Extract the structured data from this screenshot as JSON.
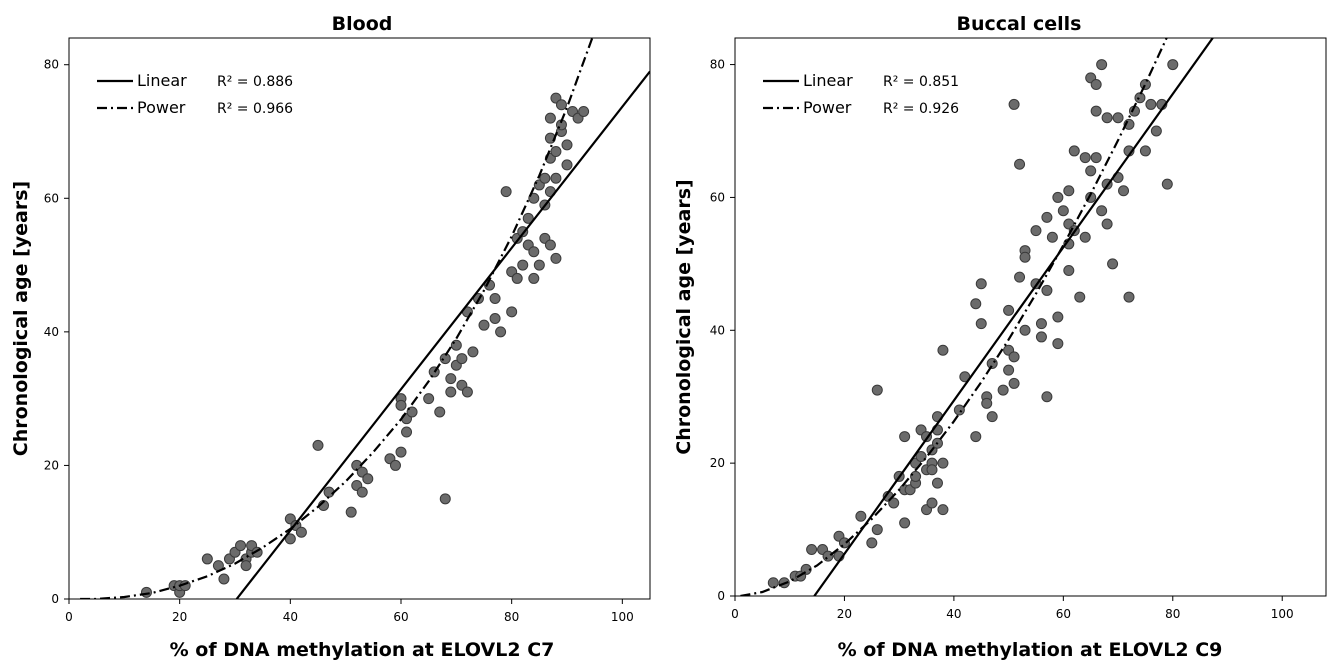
{
  "chart_data": [
    {
      "type": "scatter",
      "title": "Blood",
      "xlabel": "% of DNA methylation at ELOVL2 C7",
      "ylabel": "Chronological age [years]",
      "xlim": [
        0,
        105
      ],
      "ylim": [
        0,
        84
      ],
      "xticks": [
        "0",
        "20",
        "40",
        "60",
        "80",
        "100"
      ],
      "yticks": [
        "0",
        "20",
        "40",
        "60",
        "80"
      ],
      "legend_position": "top-left",
      "legend": [
        {
          "name": "Linear",
          "r2": "R² = 0.886",
          "style": "solid"
        },
        {
          "name": "Power",
          "r2": "R² = 0.966",
          "style": "dash-dot"
        }
      ],
      "fits": {
        "linear": {
          "x": [
            30.3,
            105
          ],
          "y": [
            0,
            79
          ]
        },
        "power": {
          "x": [
            2,
            5,
            10,
            15,
            20,
            25,
            30,
            35,
            40,
            45,
            50,
            55,
            60,
            65,
            70,
            75,
            80,
            85,
            90,
            95
          ],
          "y": [
            0.0,
            0.0,
            0.3,
            0.9,
            2.0,
            3.4,
            5.3,
            7.7,
            10.5,
            13.8,
            17.6,
            22.0,
            26.9,
            32.6,
            39.0,
            46.2,
            54.3,
            63.4,
            73.6,
            85.0
          ]
        }
      },
      "points": {
        "x": [
          14,
          19,
          20,
          20,
          21,
          25,
          27,
          28,
          29,
          30,
          31,
          32,
          32,
          33,
          33,
          34,
          40,
          40,
          41,
          42,
          45,
          46,
          47,
          51,
          52,
          52,
          53,
          53,
          54,
          58,
          59,
          60,
          60,
          60,
          61,
          61,
          62,
          65,
          66,
          67,
          68,
          68,
          69,
          69,
          70,
          70,
          71,
          71,
          72,
          72,
          73,
          74,
          75,
          76,
          77,
          77,
          78,
          79,
          80,
          80,
          81,
          81,
          82,
          82,
          83,
          83,
          84,
          84,
          84,
          85,
          85,
          86,
          86,
          86,
          87,
          87,
          87,
          87,
          87,
          88,
          88,
          88,
          88,
          89,
          89,
          89,
          90,
          90,
          91,
          92,
          93
        ],
        "y": [
          1,
          2,
          1,
          2,
          2,
          6,
          5,
          3,
          6,
          7,
          8,
          6,
          5,
          7,
          8,
          7,
          9,
          12,
          11,
          10,
          23,
          14,
          16,
          13,
          20,
          17,
          16,
          19,
          18,
          21,
          20,
          22,
          30,
          29,
          27,
          25,
          28,
          30,
          34,
          28,
          36,
          15,
          33,
          31,
          35,
          38,
          32,
          36,
          31,
          43,
          37,
          45,
          41,
          47,
          42,
          45,
          40,
          61,
          49,
          43,
          48,
          54,
          50,
          55,
          57,
          53,
          60,
          52,
          48,
          62,
          50,
          59,
          54,
          63,
          72,
          66,
          53,
          69,
          61,
          75,
          67,
          51,
          63,
          74,
          70,
          71,
          65,
          68,
          73,
          72,
          73
        ]
      }
    },
    {
      "type": "scatter",
      "title": "Buccal cells",
      "xlabel": "% of DNA methylation at ELOVL2 C9",
      "ylabel": "Chronological age [years]",
      "xlim": [
        0,
        108
      ],
      "ylim": [
        0,
        84
      ],
      "xticks": [
        "0",
        "20",
        "40",
        "60",
        "80",
        "100"
      ],
      "yticks": [
        "0",
        "20",
        "40",
        "60",
        "80"
      ],
      "legend_position": "top-left",
      "legend": [
        {
          "name": "Linear",
          "r2": "R² = 0.851",
          "style": "solid"
        },
        {
          "name": "Power",
          "r2": "R² = 0.926",
          "style": "dash-dot"
        }
      ],
      "fits": {
        "linear": {
          "x": [
            14.5,
            87.3
          ],
          "y": [
            0,
            84
          ]
        },
        "power": {
          "x": [
            1,
            5,
            10,
            15,
            20,
            25,
            30,
            35,
            40,
            45,
            50,
            55,
            60,
            65,
            70,
            75,
            80,
            82
          ],
          "y": [
            0.0,
            0.6,
            2.2,
            4.6,
            7.8,
            11.6,
            16.0,
            20.9,
            26.3,
            32.2,
            38.6,
            45.5,
            52.8,
            60.5,
            68.6,
            77.1,
            86.0,
            89.6
          ]
        }
      },
      "points": {
        "x": [
          7,
          9,
          11,
          12,
          13,
          14,
          16,
          17,
          19,
          19,
          20,
          23,
          25,
          26,
          26,
          28,
          29,
          30,
          31,
          31,
          31,
          32,
          33,
          33,
          33,
          34,
          34,
          35,
          35,
          35,
          36,
          36,
          36,
          36,
          37,
          37,
          37,
          37,
          38,
          38,
          38,
          41,
          42,
          44,
          44,
          45,
          45,
          46,
          46,
          47,
          47,
          49,
          50,
          50,
          50,
          51,
          51,
          51,
          52,
          52,
          53,
          53,
          53,
          55,
          55,
          56,
          56,
          57,
          57,
          57,
          58,
          59,
          59,
          59,
          60,
          61,
          61,
          61,
          61,
          62,
          62,
          63,
          64,
          64,
          65,
          65,
          65,
          66,
          66,
          66,
          67,
          67,
          68,
          68,
          68,
          69,
          70,
          70,
          71,
          72,
          72,
          72,
          73,
          74,
          75,
          75,
          76,
          77,
          78,
          79,
          80
        ],
        "y": [
          2,
          2,
          3,
          3,
          4,
          7,
          7,
          6,
          6,
          9,
          8,
          12,
          8,
          31,
          10,
          15,
          14,
          18,
          11,
          24,
          16,
          16,
          17,
          20,
          18,
          21,
          25,
          19,
          24,
          13,
          20,
          19,
          22,
          14,
          25,
          27,
          23,
          17,
          37,
          20,
          13,
          28,
          33,
          24,
          44,
          47,
          41,
          30,
          29,
          27,
          35,
          31,
          43,
          34,
          37,
          32,
          74,
          36,
          48,
          65,
          40,
          52,
          51,
          55,
          47,
          39,
          41,
          57,
          30,
          46,
          54,
          60,
          42,
          38,
          58,
          61,
          49,
          56,
          53,
          67,
          55,
          45,
          66,
          54,
          78,
          60,
          64,
          73,
          77,
          66,
          80,
          58,
          72,
          62,
          56,
          50,
          72,
          63,
          61,
          67,
          71,
          45,
          73,
          75,
          67,
          77,
          74,
          70,
          74,
          62,
          80
        ]
      }
    }
  ]
}
